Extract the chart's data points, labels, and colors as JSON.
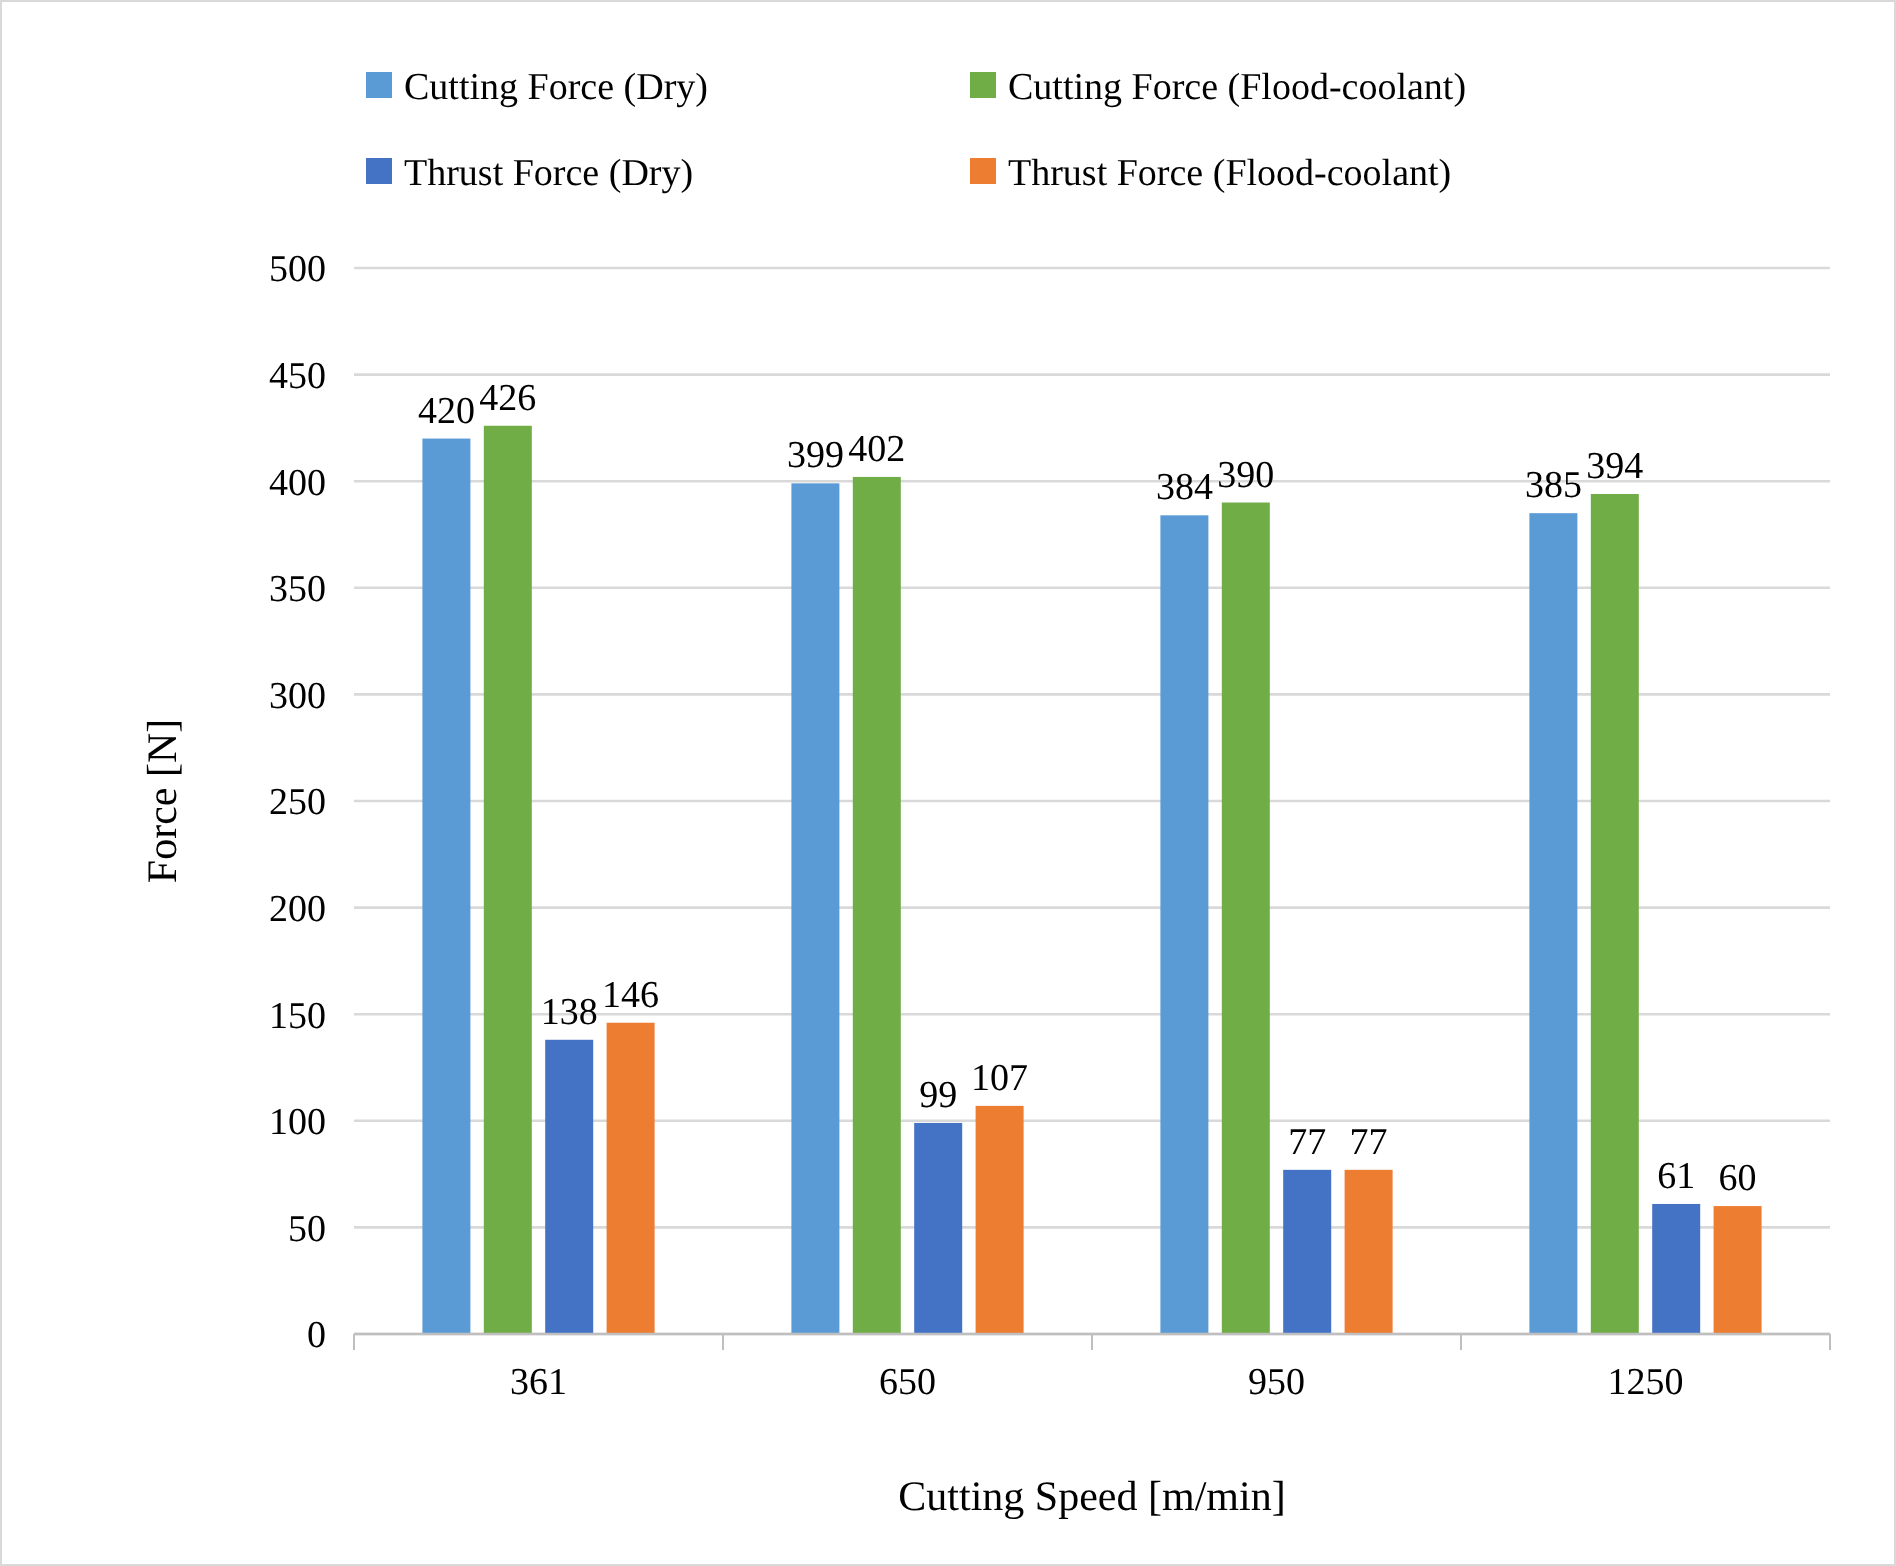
{
  "chart_data": {
    "type": "bar",
    "xlabel": "Cutting Speed [m/min]",
    "ylabel": "Force [N]",
    "categories": [
      "361",
      "650",
      "950",
      "1250"
    ],
    "series": [
      {
        "name": "Cutting Force (Dry)",
        "color": "#5b9bd5",
        "values": [
          420,
          399,
          384,
          385
        ]
      },
      {
        "name": "Cutting Force (Flood-coolant)",
        "color": "#70ad47",
        "values": [
          426,
          402,
          390,
          394
        ]
      },
      {
        "name": "Thrust Force (Dry)",
        "color": "#4472c4",
        "values": [
          138,
          99,
          77,
          61
        ]
      },
      {
        "name": "Thrust Force (Flood-coolant)",
        "color": "#ed7d31",
        "values": [
          146,
          107,
          77,
          60
        ]
      }
    ],
    "ylim": [
      0,
      500
    ],
    "yticks": [
      0,
      50,
      100,
      150,
      200,
      250,
      300,
      350,
      400,
      450,
      500
    ],
    "grid": "y",
    "legend": "top",
    "data_labels": true
  }
}
